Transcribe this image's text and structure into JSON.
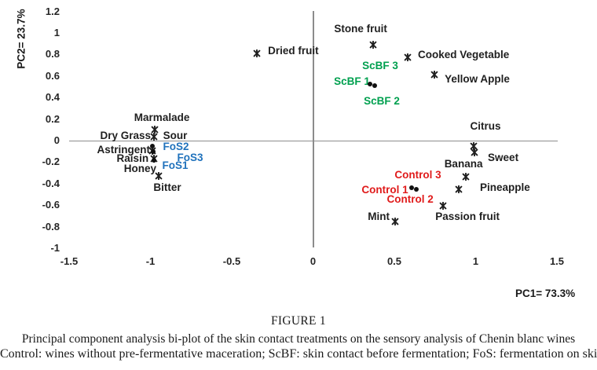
{
  "palette": {
    "black": "#1f1f1f",
    "red": "#e01b1b",
    "green": "#00a04f",
    "blue": "#2072bc",
    "axis_line": "#8c8c8c"
  },
  "chart_data": {
    "type": "scatter",
    "title": "",
    "xlabel": "PC1= 73.3%",
    "ylabel": "PC2= 23.7%",
    "xlim": [
      -1.5,
      1.5
    ],
    "ylim": [
      -1,
      1.2
    ],
    "grid": false,
    "x_ticks": [
      -1.5,
      -1,
      -0.5,
      0,
      0.5,
      1,
      1.5
    ],
    "y_ticks": [
      1.2,
      1,
      0.8,
      0.6,
      0.4,
      0.2,
      0,
      -0.2,
      -0.4,
      -0.6,
      -0.8,
      -1
    ],
    "series": [
      {
        "name": "sensory-attributes",
        "marker": "x-star",
        "color": "black",
        "points": [
          {
            "label": "Marmalade",
            "x": -0.973,
            "y": 0.124,
            "dx": 9,
            "dy": -12,
            "align": "center"
          },
          {
            "label": "Dry Grass",
            "x": -0.978,
            "y": 0.058,
            "dx": -4,
            "dy": 2,
            "align": "right"
          },
          {
            "label": "Astringent",
            "x": -0.988,
            "y": -0.073,
            "dx": -3,
            "dy": 2,
            "align": "right"
          },
          {
            "label": "Raisin",
            "x": -0.978,
            "y": -0.146,
            "dx": -7,
            "dy": 3,
            "align": "right"
          },
          {
            "label": "Honey",
            "x": -0.949,
            "y": -0.307,
            "dx": -3,
            "dy": -6,
            "align": "right"
          },
          {
            "label": "Dried fruit",
            "x": -0.345,
            "y": 0.832,
            "dx": 14,
            "dy": 0,
            "align": "left"
          },
          {
            "label": "Stone fruit",
            "x": 0.37,
            "y": 0.912,
            "dx": -16,
            "dy": -17,
            "align": "center"
          },
          {
            "label": "Cooked Vegetable",
            "x": 0.582,
            "y": 0.796,
            "dx": 13,
            "dy": 0,
            "align": "left"
          },
          {
            "label": "Yellow Apple",
            "x": 0.747,
            "y": 0.635,
            "dx": 13,
            "dy": 9,
            "align": "left"
          },
          {
            "label": "Citrus",
            "x": 0.988,
            "y": -0.029,
            "dx": 15,
            "dy": -22,
            "align": "center"
          },
          {
            "label": "Sweet",
            "x": 0.993,
            "y": -0.088,
            "dx": 17,
            "dy": 10,
            "align": "left"
          },
          {
            "label": "Banana",
            "x": 0.94,
            "y": -0.314,
            "dx": -3,
            "dy": -13,
            "align": "center"
          },
          {
            "label": "Pineapple",
            "x": 0.896,
            "y": -0.431,
            "dx": 27,
            "dy": 1,
            "align": "left"
          },
          {
            "label": "Passion fruit",
            "x": 0.8,
            "y": -0.584,
            "dx": 31,
            "dy": 17,
            "align": "center"
          },
          {
            "label": "Mint",
            "x": 0.505,
            "y": -0.73,
            "dx": -7,
            "dy": -3,
            "align": "right"
          },
          {
            "label": "Sour",
            "x": -0.848,
            "y": 0.044,
            "dx": 0,
            "dy": 0,
            "align": "center",
            "marker": "none"
          },
          {
            "label": "Bitter",
            "x": -0.896,
            "y": -0.438,
            "dx": 0,
            "dy": 0,
            "align": "center",
            "marker": "none"
          }
        ]
      },
      {
        "name": "treatment-labels",
        "marker": "none",
        "points": [
          {
            "label": "ScBF 3",
            "x": 0.413,
            "y": 0.693,
            "color": "green",
            "align": "center"
          },
          {
            "label": "ScBF 1",
            "x": 0.239,
            "y": 0.547,
            "color": "green",
            "align": "center"
          },
          {
            "label": "ScBF 2",
            "x": 0.423,
            "y": 0.365,
            "color": "green",
            "align": "center"
          },
          {
            "label": "Control 3",
            "x": 0.645,
            "y": -0.321,
            "color": "red",
            "align": "center"
          },
          {
            "label": "Control 1",
            "x": 0.442,
            "y": -0.46,
            "color": "red",
            "align": "center"
          },
          {
            "label": "Control 2",
            "x": 0.597,
            "y": -0.547,
            "color": "red",
            "align": "center"
          },
          {
            "label": "FoS2",
            "x": -0.843,
            "y": -0.058,
            "color": "blue",
            "align": "center"
          },
          {
            "label": "FoS3",
            "x": -0.756,
            "y": -0.161,
            "color": "blue",
            "align": "center"
          },
          {
            "label": "FoS1",
            "x": -0.848,
            "y": -0.234,
            "color": "blue",
            "align": "center"
          }
        ]
      },
      {
        "name": "treatment-points",
        "marker": "dot",
        "color": "black",
        "points": [
          {
            "label": "",
            "x": 0.35,
            "y": 0.526
          },
          {
            "label": "",
            "x": 0.379,
            "y": 0.511
          },
          {
            "label": "",
            "x": 0.607,
            "y": -0.438
          },
          {
            "label": "",
            "x": 0.636,
            "y": -0.453
          },
          {
            "label": "",
            "x": -0.988,
            "y": -0.051
          },
          {
            "label": "",
            "x": -0.983,
            "y": -0.102
          },
          {
            "label": "",
            "x": -0.978,
            "y": -0.182
          }
        ]
      }
    ]
  },
  "axes": {
    "x_title": "PC1= 73.3%",
    "y_title": "PC2= 23.7%"
  },
  "caption": {
    "figure_label": "FIGURE 1",
    "line1": "Principal component analysis bi-plot of the skin contact treatments on the sensory analysis of Chenin blanc wines",
    "line2": "Control: wines without pre-fermentative maceration; ScBF: skin contact before fermentation; FoS: fermentation on skins"
  }
}
